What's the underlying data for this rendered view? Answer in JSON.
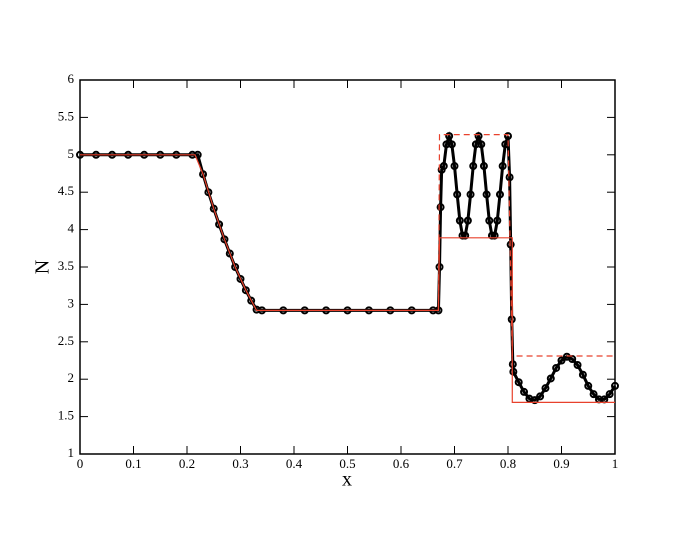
{
  "chart_data": {
    "type": "line",
    "xlabel": "x",
    "ylabel": "N",
    "xlim": [
      0,
      1
    ],
    "xticks": [
      0,
      0.1,
      0.2,
      0.3,
      0.4,
      0.5,
      0.6,
      0.7,
      0.8,
      0.9,
      1
    ],
    "ylim": [
      1,
      6
    ],
    "yticks": [
      1,
      1.5,
      2,
      2.5,
      3,
      3.5,
      4,
      4.5,
      5,
      5.5,
      6
    ],
    "series": [
      {
        "color": "#000000",
        "marker": "circle",
        "x": [
          0,
          0.03,
          0.06,
          0.09,
          0.12,
          0.15,
          0.18,
          0.21,
          0.22,
          0.23,
          0.24,
          0.25,
          0.26,
          0.27,
          0.28,
          0.29,
          0.3,
          0.31,
          0.32,
          0.33,
          0.34,
          0.38,
          0.42,
          0.46,
          0.5,
          0.54,
          0.58,
          0.62,
          0.66,
          0.67,
          0.672,
          0.674,
          0.676,
          0.68,
          0.685,
          0.69,
          0.695,
          0.7,
          0.705,
          0.71,
          0.715,
          0.72,
          0.725,
          0.73,
          0.735,
          0.74,
          0.745,
          0.75,
          0.755,
          0.76,
          0.765,
          0.77,
          0.775,
          0.78,
          0.785,
          0.79,
          0.795,
          0.8,
          0.803,
          0.805,
          0.807,
          0.809,
          0.81,
          0.82,
          0.83,
          0.84,
          0.85,
          0.86,
          0.87,
          0.88,
          0.89,
          0.9,
          0.91,
          0.92,
          0.93,
          0.94,
          0.95,
          0.96,
          0.97,
          0.98,
          0.99,
          1
        ],
        "values": [
          5,
          5,
          5,
          5,
          5,
          5,
          5,
          5,
          5,
          4.74,
          4.5,
          4.28,
          4.07,
          3.87,
          3.68,
          3.5,
          3.34,
          3.19,
          3.05,
          2.93,
          2.92,
          2.92,
          2.92,
          2.92,
          2.92,
          2.92,
          2.92,
          2.92,
          2.92,
          2.92,
          3.5,
          4.3,
          4.8,
          4.85,
          5.14,
          5.25,
          5.14,
          4.85,
          4.47,
          4.12,
          3.92,
          3.92,
          4.12,
          4.47,
          4.85,
          5.14,
          5.25,
          5.14,
          4.85,
          4.47,
          4.12,
          3.92,
          3.92,
          4.12,
          4.47,
          4.85,
          5.14,
          5.25,
          4.7,
          3.8,
          2.8,
          2.2,
          2.1,
          1.96,
          1.83,
          1.74,
          1.72,
          1.77,
          1.88,
          2.01,
          2.15,
          2.25,
          2.3,
          2.27,
          2.19,
          2.06,
          1.91,
          1.8,
          1.73,
          1.73,
          1.8,
          1.91
        ]
      },
      {
        "color": "#e8412c",
        "line_style": "solid",
        "x": [
          0,
          0.215,
          0.23,
          0.25,
          0.27,
          0.29,
          0.31,
          0.33,
          0.67,
          0.672,
          0.808,
          0.808,
          1
        ],
        "values": [
          5,
          5,
          4.74,
          4.28,
          3.87,
          3.5,
          3.19,
          2.92,
          2.92,
          3.89,
          3.89,
          1.69,
          1.69
        ]
      },
      {
        "color": "#e8412c",
        "line_style": "dashed",
        "x": [
          0.67,
          0.672,
          0.8,
          0.808,
          1
        ],
        "values": [
          2.92,
          5.27,
          5.27,
          2.31,
          2.31
        ]
      }
    ]
  }
}
